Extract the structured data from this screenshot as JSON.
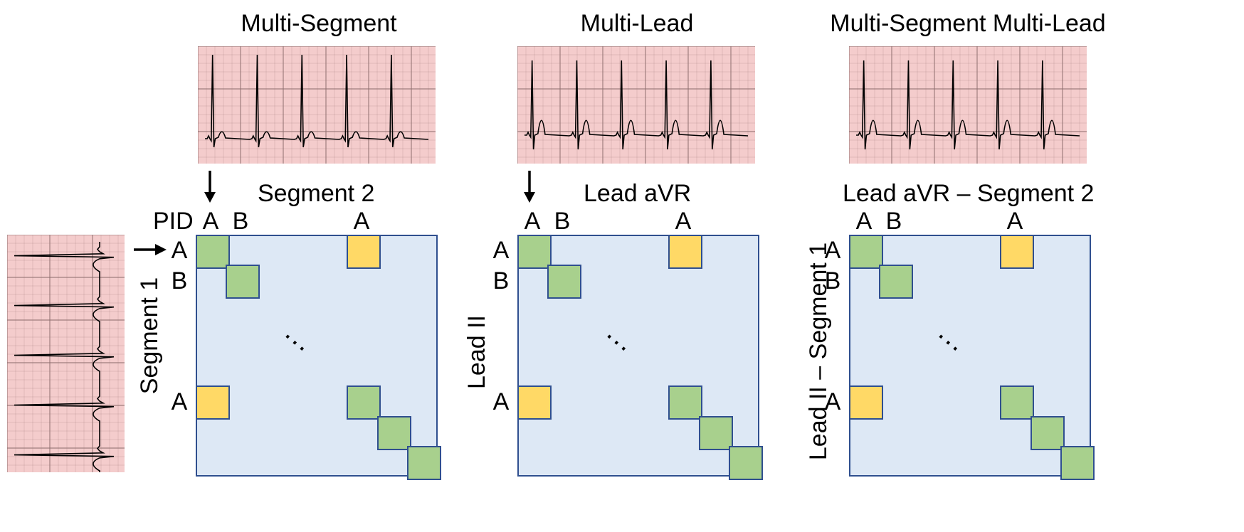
{
  "panels": [
    {
      "title": "Multi-Segment",
      "col_title": "Segment 2",
      "row_title": "Segment 1",
      "col_labels": [
        "A",
        "B",
        "A"
      ],
      "row_labels": [
        "A",
        "B",
        "A"
      ],
      "pid_label": "PID"
    },
    {
      "title": "Multi-Lead",
      "col_title": "Lead aVR",
      "row_title": "Lead II",
      "col_labels": [
        "A",
        "B",
        "A"
      ],
      "row_labels": [
        "A",
        "B",
        "A"
      ]
    },
    {
      "title": "Multi-Segment Multi-Lead",
      "col_title": "Lead aVR – Segment 2",
      "row_title": "Lead II – Segment 1",
      "col_labels": [
        "A",
        "B",
        "A"
      ],
      "row_labels": [
        "A",
        "B",
        "A"
      ]
    }
  ],
  "ellipsis": "...",
  "colors": {
    "ecg_background": "#f4cccc",
    "ecg_grid": "#8b6b6b",
    "matrix_fill": "#dde8f5",
    "matrix_border": "#2f4f8f",
    "match_cell": "#a8d08d",
    "cross_cell": "#ffd966"
  },
  "icons": [
    "ecg-waveform",
    "down-arrow-icon",
    "right-arrow-icon"
  ]
}
